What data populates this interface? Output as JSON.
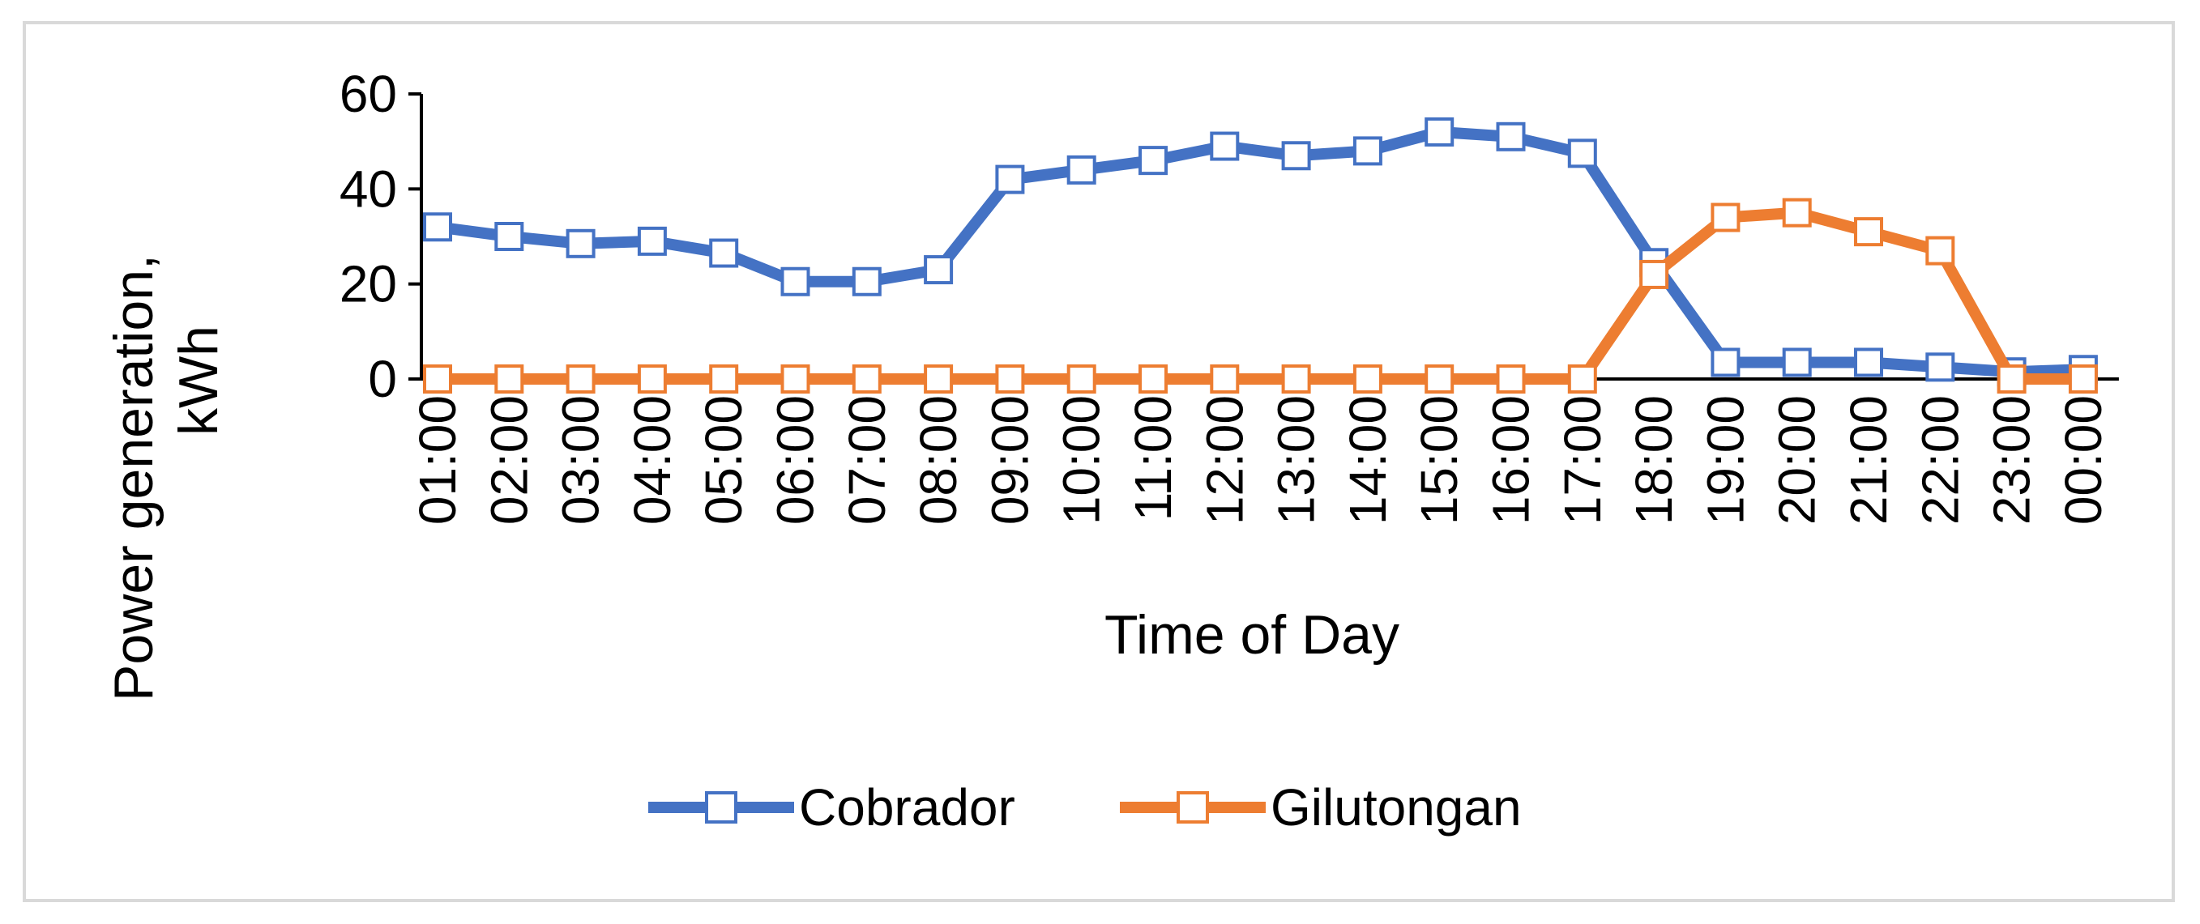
{
  "chart_data": {
    "type": "line",
    "categories": [
      "01:00",
      "02:00",
      "03:00",
      "04:00",
      "05:00",
      "06:00",
      "07:00",
      "08:00",
      "09:00",
      "10:00",
      "11:00",
      "12:00",
      "13:00",
      "14:00",
      "15:00",
      "16:00",
      "17:00",
      "18:00",
      "19:00",
      "20:00",
      "21:00",
      "22:00",
      "23:00",
      "00:00"
    ],
    "series": [
      {
        "name": "Cobrador",
        "color": "#4472C4",
        "values": [
          32,
          30,
          28.5,
          29,
          26.5,
          20.5,
          20.5,
          23,
          42,
          44,
          46,
          49,
          47,
          48,
          52,
          51,
          47.5,
          24.5,
          3.5,
          3.5,
          3.5,
          2.5,
          1.5,
          2
        ]
      },
      {
        "name": "Gilutongan",
        "color": "#ED7D31",
        "values": [
          0,
          0,
          0,
          0,
          0,
          0,
          0,
          0,
          0,
          0,
          0,
          0,
          0,
          0,
          0,
          0,
          0,
          22,
          34,
          35,
          31,
          27,
          0,
          0
        ]
      }
    ],
    "xlabel": "Time of Day",
    "ylabel_lines": [
      "Power generation,",
      "kWh"
    ],
    "ylim": [
      0,
      60
    ],
    "yticks": [
      0,
      20,
      40,
      60
    ],
    "grid": false,
    "legend_position": "bottom"
  }
}
